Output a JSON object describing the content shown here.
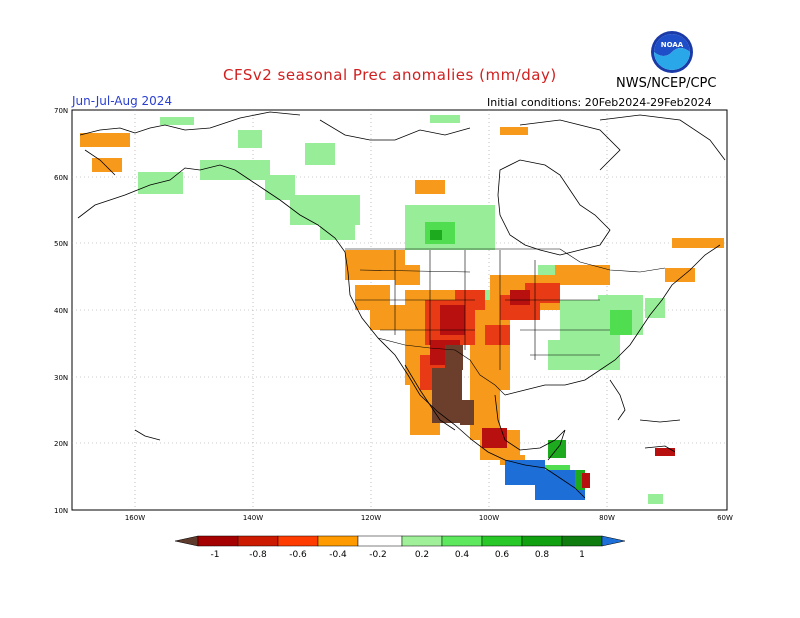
{
  "header": {
    "title": "CFSv2 seasonal Prec anomalies (mm/day)",
    "season": "Jun-Jul-Aug 2024",
    "initial_conditions": "Initial conditions: 20Feb2024-29Feb2024",
    "agency": "NWS/NCEP/CPC",
    "logo_text": "NOAA"
  },
  "map": {
    "lat_labels": [
      "70N",
      "60N",
      "50N",
      "40N",
      "30N",
      "20N",
      "10N"
    ],
    "lon_labels": [
      "160W",
      "140W",
      "120W",
      "100W",
      "80W",
      "60W"
    ]
  },
  "colorbar": {
    "labels": [
      "-1",
      "-0.8",
      "-0.6",
      "-0.4",
      "-0.2",
      "0.2",
      "0.4",
      "0.6",
      "0.8",
      "1"
    ],
    "colors": [
      "#5e3a2c",
      "#a50000",
      "#cc1a00",
      "#ff3c00",
      "#ff9a00",
      "#ffffff",
      "#a0f09a",
      "#5ee85e",
      "#28c828",
      "#10a010",
      "#1e70d8"
    ]
  },
  "palette": {
    "dry_strong": "#6b3f2c",
    "dry_red": "#b80f0f",
    "dry_redorange": "#e83a15",
    "dry_orange": "#f79a1b",
    "wet_light": "#98ee98",
    "wet_mid": "#50de50",
    "wet_dark": "#1eaa1e",
    "wet_blue": "#1e6ed8"
  }
}
